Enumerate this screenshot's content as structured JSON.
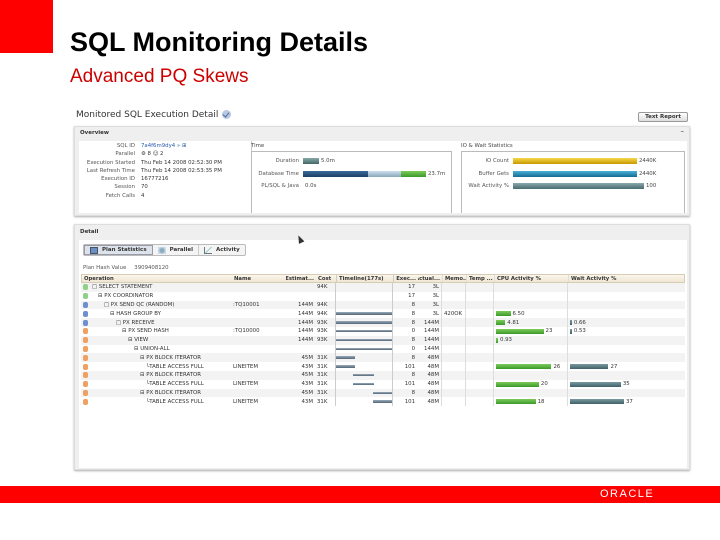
{
  "slide": {
    "title": "SQL Monitoring Details",
    "subtitle": "Advanced PQ Skews",
    "footer_logo": "ORACLE",
    "accent": "#ff0000",
    "subtitle_color": "#cc0000"
  },
  "page": {
    "title": "Monitored SQL Execution Detail",
    "text_report_button": "Text Report"
  },
  "overview": {
    "header": "Overview",
    "collapse": "–",
    "fields": [
      {
        "label": "SQL ID",
        "value": "7a4f6m9dy4 » ⊞"
      },
      {
        "label": "Parallel",
        "value": "⚙ 8   ☺ 2"
      },
      {
        "label": "Execution Started",
        "value": "Thu Feb 14 2008 02:52:30 PM"
      },
      {
        "label": "Last Refresh Time",
        "value": "Thu Feb 14 2008 02:53:35 PM"
      },
      {
        "label": "Execution ID",
        "value": "16777216"
      },
      {
        "label": "Session",
        "value": "70"
      },
      {
        "label": "Fetch Calls",
        "value": "4"
      }
    ],
    "time": {
      "title": "Time",
      "duration_label": "Duration",
      "duration_value": "5.0m",
      "db_time_label": "Database Time",
      "db_time_value": "23.7m",
      "plsql_label": "PL/SQL & Java",
      "plsql_value": "0.0s"
    },
    "io": {
      "title": "IO & Wait Statistics",
      "rows": [
        {
          "label": "IO Count",
          "value": "2440K",
          "color": "#e8b800"
        },
        {
          "label": "Buffer Gets",
          "value": "2440K",
          "color": "#1a8ab8"
        },
        {
          "label": "Wait Activity %",
          "value": "100",
          "color": "#5a7f85"
        }
      ]
    }
  },
  "detail": {
    "header": "Detail",
    "tabs": [
      {
        "label": "Plan Statistics",
        "active": true
      },
      {
        "label": "Parallel",
        "active": false
      },
      {
        "label": "Activity",
        "active": false
      }
    ],
    "plan_hash_label": "Plan Hash Value",
    "plan_hash_value": "3909408120",
    "columns": [
      "Operation",
      "Name",
      "Estimat...",
      "Cost",
      "Timeline(177s)",
      "Exec...",
      "Actual...",
      "Memo...",
      "Temp ...",
      "CPU Activity %",
      "Wait Activity %"
    ],
    "rows": [
      {
        "icon": "green",
        "indent": 0,
        "op": "□ SELECT STATEMENT",
        "name": "",
        "est": "",
        "cost": "94K",
        "tl": null,
        "exec": "17",
        "actual": "3L",
        "mem": "",
        "temp": "",
        "cpu": null,
        "cpu_label": "",
        "wait": null,
        "wait_label": ""
      },
      {
        "icon": "green",
        "indent": 1,
        "op": "⊟ PX COORDINATOR",
        "name": "",
        "est": "",
        "cost": "",
        "tl": null,
        "exec": "17",
        "actual": "3L",
        "mem": "",
        "temp": "",
        "cpu": null,
        "cpu_label": "",
        "wait": null,
        "wait_label": ""
      },
      {
        "icon": "blue",
        "indent": 2,
        "op": "□ PX SEND QC (RANDOM)",
        "name": ":TQ10001",
        "est": "144M",
        "cost": "94K",
        "tl": null,
        "exec": "8",
        "actual": "3L",
        "mem": "",
        "temp": "",
        "cpu": null,
        "cpu_label": "",
        "wait": null,
        "wait_label": ""
      },
      {
        "icon": "blue",
        "indent": 3,
        "op": "⊟ HASH GROUP BY",
        "name": "",
        "est": "144M",
        "cost": "94K",
        "tl": [
          0,
          100
        ],
        "exec": "8",
        "actual": "3L",
        "mem": "420OK",
        "temp": "",
        "cpu": 22,
        "cpu_label": "6.50",
        "wait": null,
        "wait_label": ""
      },
      {
        "icon": "blue",
        "indent": 4,
        "op": "□ PX RECEIVE",
        "name": "",
        "est": "144M",
        "cost": "93K",
        "tl": [
          0,
          100
        ],
        "exec": "8",
        "actual": "144M",
        "mem": "",
        "temp": "",
        "cpu": 14,
        "cpu_label": "4.81",
        "wait": 3,
        "wait_label": "0.66"
      },
      {
        "icon": "orange",
        "indent": 5,
        "op": "⊟ PX SEND HASH",
        "name": ":TQ10000",
        "est": "144M",
        "cost": "93K",
        "tl": [
          0,
          100
        ],
        "exec": "0",
        "actual": "144M",
        "mem": "",
        "temp": "",
        "cpu": 72,
        "cpu_label": "23",
        "wait": 3,
        "wait_label": "0.53"
      },
      {
        "icon": "orange",
        "indent": 6,
        "op": "⊟ VIEW",
        "name": "",
        "est": "144M",
        "cost": "93K",
        "tl": [
          0,
          100
        ],
        "exec": "8",
        "actual": "144M",
        "mem": "",
        "temp": "",
        "cpu": 3,
        "cpu_label": "0.93",
        "wait": null,
        "wait_label": ""
      },
      {
        "icon": "orange",
        "indent": 7,
        "op": "⊟ UNION-ALL",
        "name": "",
        "est": "",
        "cost": "",
        "tl": [
          0,
          100
        ],
        "exec": "0",
        "actual": "144M",
        "mem": "",
        "temp": "",
        "cpu": null,
        "cpu_label": "",
        "wait": null,
        "wait_label": ""
      },
      {
        "icon": "orange",
        "indent": 8,
        "op": "⊟ PX BLOCK ITERATOR",
        "name": "",
        "est": "45M",
        "cost": "31K",
        "tl": [
          0,
          34
        ],
        "exec": "8",
        "actual": "48M",
        "mem": "",
        "temp": "",
        "cpu": null,
        "cpu_label": "",
        "wait": null,
        "wait_label": ""
      },
      {
        "icon": "orange",
        "indent": 9,
        "op": "└TABLE ACCESS FULL",
        "name": "LINEITEM",
        "est": "43M",
        "cost": "31K",
        "tl": [
          0,
          34
        ],
        "exec": "101",
        "actual": "48M",
        "mem": "",
        "temp": "",
        "cpu": 84,
        "cpu_label": "26",
        "wait": 62,
        "wait_label": "27"
      },
      {
        "icon": "orange",
        "indent": 8,
        "op": "⊟ PX BLOCK ITERATOR",
        "name": "",
        "est": "45M",
        "cost": "31K",
        "tl": [
          31,
          68
        ],
        "exec": "8",
        "actual": "48M",
        "mem": "",
        "temp": "",
        "cpu": null,
        "cpu_label": "",
        "wait": null,
        "wait_label": ""
      },
      {
        "icon": "orange",
        "indent": 9,
        "op": "└TABLE ACCESS FULL",
        "name": "LINEITEM",
        "est": "43M",
        "cost": "31K",
        "tl": [
          31,
          68
        ],
        "exec": "101",
        "actual": "48M",
        "mem": "",
        "temp": "",
        "cpu": 65,
        "cpu_label": "20",
        "wait": 82,
        "wait_label": "35"
      },
      {
        "icon": "orange",
        "indent": 8,
        "op": "⊟ PX BLOCK ITERATOR",
        "name": "",
        "est": "45M",
        "cost": "31K",
        "tl": [
          66,
          100
        ],
        "exec": "8",
        "actual": "48M",
        "mem": "",
        "temp": "",
        "cpu": null,
        "cpu_label": "",
        "wait": null,
        "wait_label": ""
      },
      {
        "icon": "orange",
        "indent": 9,
        "op": "└TABLE ACCESS FULL",
        "name": "LINEITEM",
        "est": "43M",
        "cost": "31K",
        "tl": [
          66,
          100
        ],
        "exec": "101",
        "actual": "48M",
        "mem": "",
        "temp": "",
        "cpu": 60,
        "cpu_label": "18",
        "wait": 87,
        "wait_label": "37"
      }
    ]
  }
}
